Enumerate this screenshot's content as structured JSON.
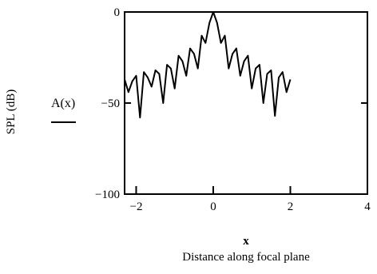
{
  "chart_data": {
    "type": "line",
    "title": "",
    "trace_label": "A(x)",
    "ylabel": "SPL (dB)",
    "xlabel_var": "x",
    "xlabel": "Distance along focal plane",
    "xlim": [
      -2.3,
      4
    ],
    "ylim": [
      -100,
      0
    ],
    "x_ticks": [
      -2,
      0,
      2,
      4
    ],
    "x_tick_labels": [
      "−2",
      "0",
      "2",
      "4"
    ],
    "y_ticks": [
      0,
      -50,
      -100
    ],
    "y_tick_labels": [
      "0",
      "−50",
      "−100"
    ],
    "grid": false,
    "series": [
      {
        "x": [
          -2.3,
          -2.2,
          -2.1,
          -2.0,
          -1.9,
          -1.8,
          -1.7,
          -1.6,
          -1.5,
          -1.4,
          -1.3,
          -1.2,
          -1.1,
          -1.0,
          -0.9,
          -0.8,
          -0.7,
          -0.6,
          -0.5,
          -0.4,
          -0.3,
          -0.2,
          -0.1,
          0.0,
          0.1,
          0.2,
          0.3,
          0.4,
          0.5,
          0.6,
          0.7,
          0.8,
          0.9,
          1.0,
          1.1,
          1.2,
          1.3,
          1.4,
          1.5,
          1.6,
          1.7,
          1.8,
          1.9,
          2.0
        ],
        "values": [
          -37,
          -44,
          -38,
          -35,
          -58,
          -33,
          -36,
          -41,
          -32,
          -34,
          -50,
          -29,
          -31,
          -42,
          -24,
          -27,
          -35,
          -20,
          -23,
          -31,
          -13,
          -17,
          -6,
          0,
          -6,
          -17,
          -13,
          -31,
          -23,
          -20,
          -35,
          -27,
          -24,
          -42,
          -31,
          -29,
          -50,
          -34,
          -32,
          -57,
          -36,
          -33,
          -44,
          -37
        ]
      }
    ]
  }
}
